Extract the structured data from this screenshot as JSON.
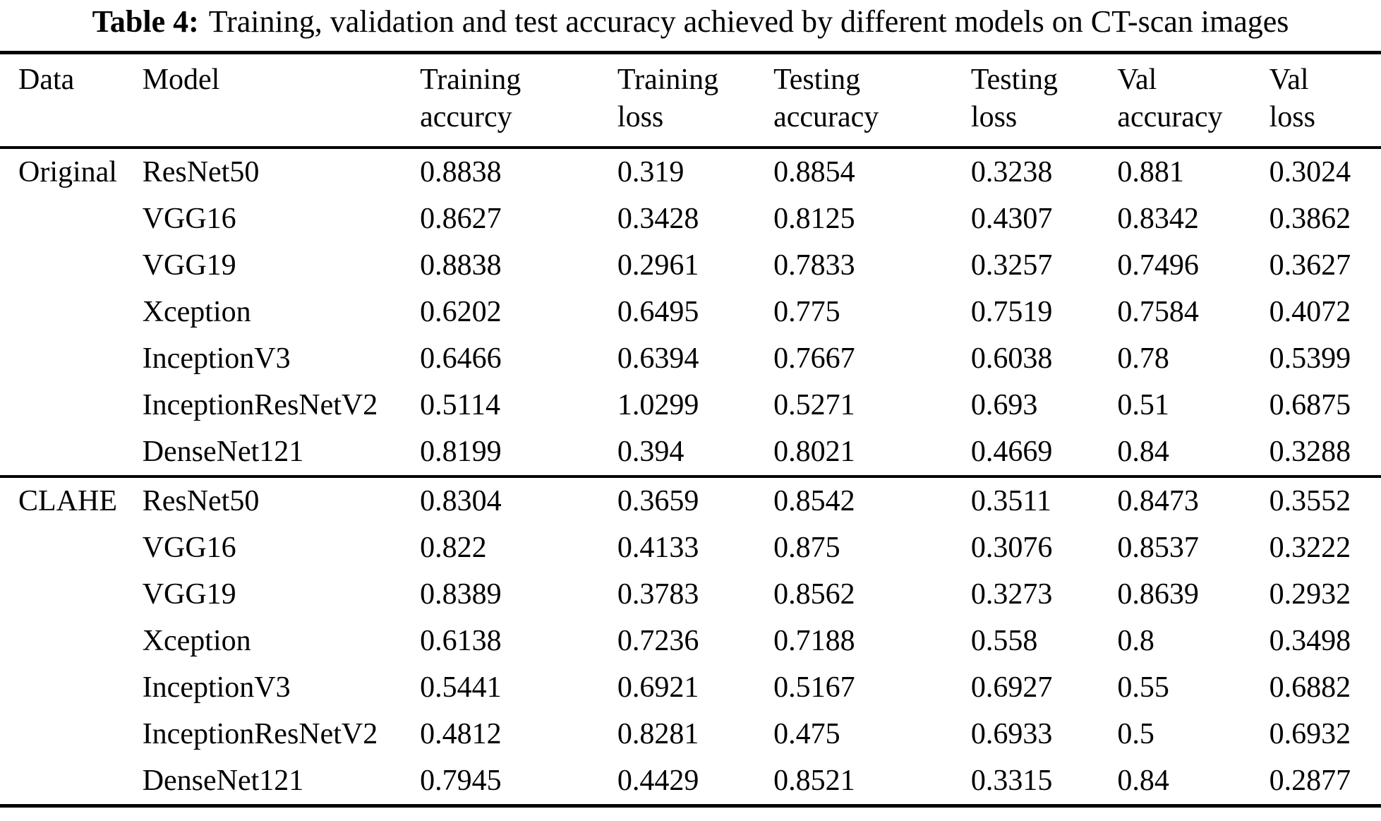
{
  "caption": {
    "label": "Table 4:",
    "text": "Training, validation and test accuracy achieved by different models on CT-scan images"
  },
  "table": {
    "columns": [
      {
        "line1": "Data",
        "line2": ""
      },
      {
        "line1": "Model",
        "line2": ""
      },
      {
        "line1": "Training",
        "line2": "accurcy"
      },
      {
        "line1": "Training",
        "line2": "loss"
      },
      {
        "line1": "Testing",
        "line2": "accuracy"
      },
      {
        "line1": "Testing",
        "line2": "loss"
      },
      {
        "line1": "Val",
        "line2": "accuracy"
      },
      {
        "line1": "Val",
        "line2": "loss"
      }
    ],
    "sections": [
      {
        "data_label": "Original",
        "rows": [
          {
            "model": "ResNet50",
            "values": [
              "0.8838",
              "0.319",
              "0.8854",
              "0.3238",
              "0.881",
              "0.3024"
            ]
          },
          {
            "model": "VGG16",
            "values": [
              "0.8627",
              "0.3428",
              "0.8125",
              "0.4307",
              "0.8342",
              "0.3862"
            ]
          },
          {
            "model": "VGG19",
            "values": [
              "0.8838",
              "0.2961",
              "0.7833",
              "0.3257",
              "0.7496",
              "0.3627"
            ]
          },
          {
            "model": "Xception",
            "values": [
              "0.6202",
              "0.6495",
              "0.775",
              "0.7519",
              "0.7584",
              "0.4072"
            ]
          },
          {
            "model": "InceptionV3",
            "values": [
              "0.6466",
              "0.6394",
              "0.7667",
              "0.6038",
              "0.78",
              "0.5399"
            ]
          },
          {
            "model": "InceptionResNetV2",
            "values": [
              "0.5114",
              "1.0299",
              "0.5271",
              "0.693",
              "0.51",
              "0.6875"
            ]
          },
          {
            "model": "DenseNet121",
            "values": [
              "0.8199",
              "0.394",
              "0.8021",
              "0.4669",
              "0.84",
              "0.3288"
            ]
          }
        ]
      },
      {
        "data_label": "CLAHE",
        "rows": [
          {
            "model": "ResNet50",
            "values": [
              "0.8304",
              "0.3659",
              "0.8542",
              "0.3511",
              "0.8473",
              "0.3552"
            ]
          },
          {
            "model": "VGG16",
            "values": [
              "0.822",
              "0.4133",
              "0.875",
              "0.3076",
              "0.8537",
              "0.3222"
            ]
          },
          {
            "model": "VGG19",
            "values": [
              "0.8389",
              "0.3783",
              "0.8562",
              "0.3273",
              "0.8639",
              "0.2932"
            ]
          },
          {
            "model": "Xception",
            "values": [
              "0.6138",
              "0.7236",
              "0.7188",
              "0.558",
              "0.8",
              "0.3498"
            ]
          },
          {
            "model": "InceptionV3",
            "values": [
              "0.5441",
              "0.6921",
              "0.5167",
              "0.6927",
              "0.55",
              "0.6882"
            ]
          },
          {
            "model": "InceptionResNetV2",
            "values": [
              "0.4812",
              "0.8281",
              "0.475",
              "0.6933",
              "0.5",
              "0.6932"
            ]
          },
          {
            "model": "DenseNet121",
            "values": [
              "0.7945",
              "0.4429",
              "0.8521",
              "0.3315",
              "0.84",
              "0.2877"
            ]
          }
        ]
      }
    ]
  },
  "colors": {
    "text": "#000000",
    "background": "#ffffff",
    "rule": "#000000"
  }
}
